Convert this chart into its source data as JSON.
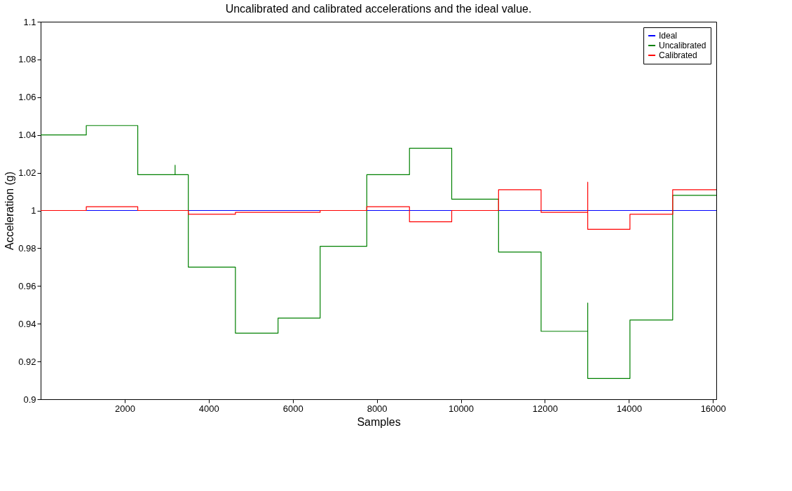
{
  "chart_data": {
    "type": "line",
    "title": "Uncalibrated and calibrated accelerations and the ideal value.",
    "xlabel": "Samples",
    "ylabel": "Acceleration (g)",
    "xlim": [
      0,
      16080
    ],
    "xticks": [
      2000,
      4000,
      6000,
      8000,
      10000,
      12000,
      14000,
      16000
    ],
    "ylim": [
      0.9,
      1.1
    ],
    "yticks": [
      0.9,
      0.92,
      0.94,
      0.96,
      0.98,
      1,
      1.02,
      1.04,
      1.06,
      1.08,
      1.1
    ],
    "grid": false,
    "legend": "top right",
    "marker": "none",
    "line_style": "solid",
    "series": [
      {
        "name": "Ideal",
        "color": "#0000ff",
        "x": [
          0,
          16080
        ],
        "values": [
          1,
          1
        ]
      },
      {
        "name": "Uncalibrated",
        "color": "#008000",
        "x": [
          0,
          1086,
          1086,
          2311,
          2311,
          3200,
          3200,
          3200,
          3514,
          3514,
          4635,
          4635,
          5650,
          5650,
          6652,
          6652,
          7762,
          7762,
          8778,
          8778,
          9783,
          9783,
          10898,
          10898,
          11910,
          11910,
          13020,
          13020,
          13020,
          14025,
          14025,
          15042,
          15042,
          16080
        ],
        "values": [
          1.04,
          1.04,
          1.045,
          1.045,
          1.019,
          1.019,
          1.024,
          1.019,
          1.019,
          0.97,
          0.97,
          0.935,
          0.935,
          0.943,
          0.943,
          0.981,
          0.981,
          1.019,
          1.019,
          1.033,
          1.033,
          1.006,
          1.006,
          0.978,
          0.978,
          0.936,
          0.936,
          0.951,
          0.911,
          0.911,
          0.942,
          0.942,
          1.008,
          1.008
        ]
      },
      {
        "name": "Calibrated",
        "color": "#ff0000",
        "x": [
          0,
          1086,
          1086,
          2311,
          2311,
          3514,
          3514,
          4635,
          4635,
          6652,
          6652,
          7762,
          7762,
          8778,
          8778,
          9783,
          9783,
          10898,
          10898,
          11910,
          11910,
          13020,
          13020,
          13020,
          14025,
          14025,
          15042,
          15042,
          16080
        ],
        "values": [
          1.0,
          1.0,
          1.002,
          1.002,
          1.0,
          1.0,
          0.998,
          0.998,
          0.999,
          0.999,
          1.0,
          1.0,
          1.002,
          1.002,
          0.994,
          0.994,
          1.0,
          1.0,
          1.011,
          1.011,
          0.999,
          0.999,
          1.015,
          0.99,
          0.99,
          0.998,
          0.998,
          1.011,
          1.011
        ]
      }
    ]
  }
}
